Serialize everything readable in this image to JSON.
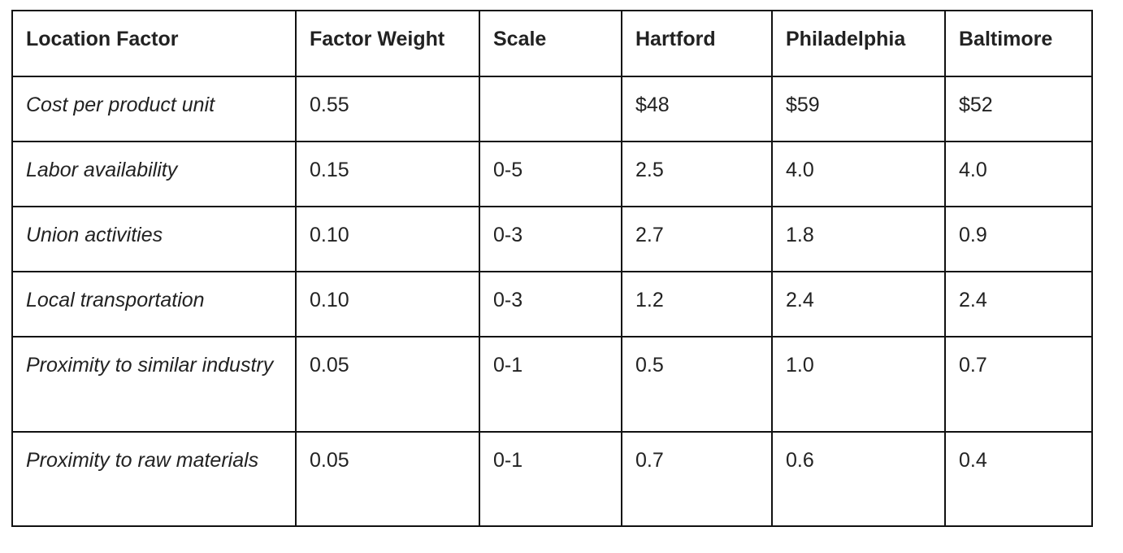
{
  "table": {
    "header": [
      "Location Factor",
      "Factor Weight",
      "Scale",
      "Hartford",
      "Philadelphia",
      "Baltimore"
    ],
    "rows": [
      [
        "Cost per product unit",
        "0.55",
        null,
        "$48",
        "$59",
        "$52"
      ],
      [
        "Labor availability",
        "0.15",
        "0-5",
        "2.5",
        "4.0",
        "4.0"
      ],
      [
        "Union activities",
        "0.10",
        "0-3",
        "2.7",
        "1.8",
        "0.9"
      ],
      [
        "Local transportation",
        "0.10",
        "0-3",
        "1.2",
        "2.4",
        "2.4"
      ],
      [
        "Proximity to similar industry",
        "0.05",
        "0-1",
        "0.5",
        "1.0",
        "0.7"
      ],
      [
        "Proximity to raw materials",
        "0.05",
        "0-1",
        "0.7",
        "0.6",
        "0.4"
      ]
    ]
  }
}
